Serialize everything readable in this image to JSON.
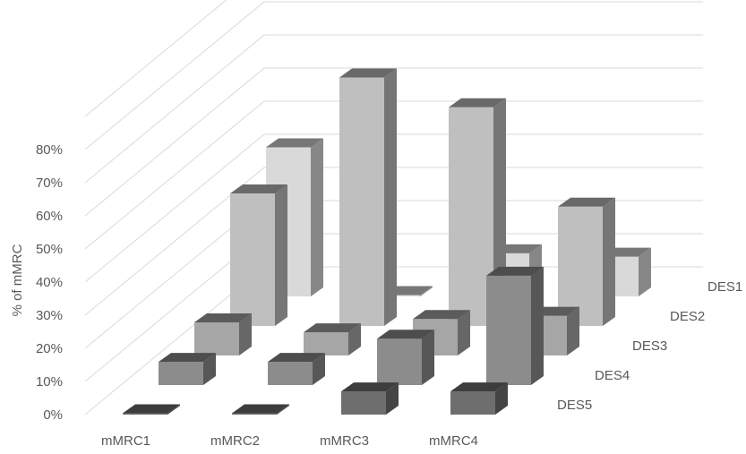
{
  "chart_data": {
    "type": "bar",
    "variant": "3d-column",
    "title": "",
    "xlabel": "",
    "ylabel": "% of mMRC",
    "ylim": [
      0,
      80
    ],
    "yticks": [
      "0%",
      "10%",
      "20%",
      "30%",
      "40%",
      "50%",
      "60%",
      "70%",
      "80%"
    ],
    "grid": true,
    "legend": "none",
    "categories": [
      "mMRC1",
      "mMRC2",
      "mMRC3",
      "mMRC4"
    ],
    "series": [
      {
        "name": "DES1",
        "color": "#d9d9d9",
        "values": [
          45,
          0,
          13,
          12
        ]
      },
      {
        "name": "DES2",
        "color": "#bfbfbf",
        "values": [
          40,
          75,
          66,
          36
        ]
      },
      {
        "name": "DES3",
        "color": "#a6a6a6",
        "values": [
          10,
          7,
          11,
          12
        ]
      },
      {
        "name": "DES4",
        "color": "#8c8c8c",
        "values": [
          7,
          7,
          14,
          33
        ]
      },
      {
        "name": "DES5",
        "color": "#6e6e6e",
        "values": [
          0,
          0,
          7,
          7
        ]
      }
    ]
  }
}
